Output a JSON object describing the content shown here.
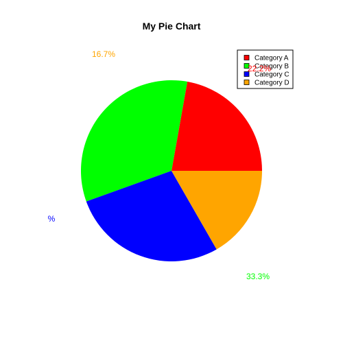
{
  "chart_data": {
    "type": "pie",
    "title": "My Pie Chart",
    "categories": [
      "Category A",
      "Category B",
      "Category C",
      "Category D"
    ],
    "values": [
      22.2,
      33.3,
      27.8,
      16.7
    ],
    "colors": [
      "#ff0000",
      "#00ff00",
      "#0000ff",
      "#ffa500"
    ],
    "start_angle_deg": 0,
    "direction": "counterclockwise",
    "legend_placement": "top-right",
    "labels": [
      "22.2%",
      "16.7%",
      "%",
      "33.3%"
    ],
    "label_colors": [
      "#ff0000",
      "#ffa500",
      "#0000ff",
      "#00ff00"
    ]
  }
}
